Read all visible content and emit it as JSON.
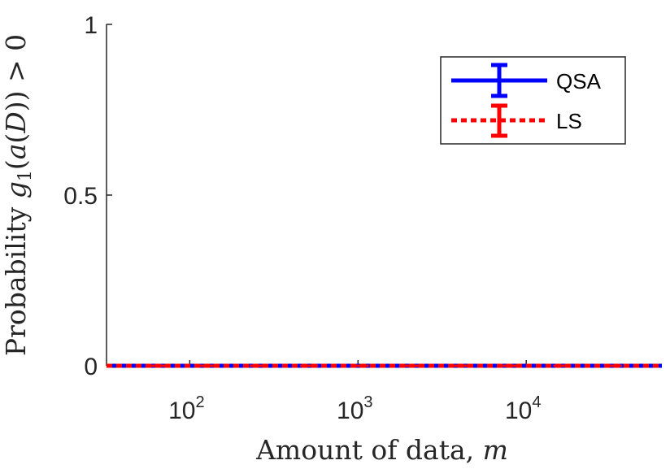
{
  "chart_data": {
    "type": "line",
    "xscale": "log",
    "xlim": [
      32,
      64000
    ],
    "ylim": [
      0,
      1
    ],
    "x": [
      32,
      64,
      128,
      256,
      512,
      1024,
      2048,
      4096,
      8192,
      16384,
      32768,
      64000
    ],
    "series": [
      {
        "name": "QSA",
        "color": "#0000ff",
        "linestyle": "solid",
        "values": [
          0,
          0,
          0,
          0,
          0,
          0,
          0,
          0,
          0,
          0,
          0,
          0
        ],
        "errors": [
          0,
          0,
          0,
          0,
          0,
          0,
          0,
          0,
          0,
          0,
          0,
          0
        ]
      },
      {
        "name": "LS",
        "color": "#ff0000",
        "linestyle": "dotted",
        "values": [
          0,
          0,
          0,
          0,
          0,
          0,
          0,
          0,
          0,
          0,
          0,
          0
        ],
        "errors": [
          0,
          0,
          0,
          0,
          0,
          0,
          0,
          0,
          0,
          0,
          0,
          0
        ]
      }
    ],
    "yticks": [
      {
        "value": 0,
        "label": "0"
      },
      {
        "value": 0.5,
        "label": "0.5"
      },
      {
        "value": 1,
        "label": "1"
      }
    ],
    "xticks": [
      {
        "value": 100,
        "base": "10",
        "exp": "2"
      },
      {
        "value": 1000,
        "base": "10",
        "exp": "3"
      },
      {
        "value": 10000,
        "base": "10",
        "exp": "4"
      }
    ],
    "xlabel": "Amount of data, m",
    "ylabel": "Probability g1(a(D)) > 0",
    "legend_position": "top-right",
    "grid": false
  }
}
